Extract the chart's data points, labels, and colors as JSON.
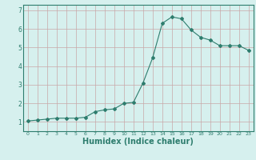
{
  "x": [
    0,
    1,
    2,
    3,
    4,
    5,
    6,
    7,
    8,
    9,
    10,
    11,
    12,
    13,
    14,
    15,
    16,
    17,
    18,
    19,
    20,
    21,
    22,
    23
  ],
  "y": [
    1.05,
    1.1,
    1.15,
    1.2,
    1.2,
    1.2,
    1.25,
    1.55,
    1.65,
    1.7,
    2.0,
    2.05,
    3.1,
    4.45,
    6.3,
    6.65,
    6.55,
    5.95,
    5.55,
    5.4,
    5.1,
    5.1,
    5.1,
    4.85
  ],
  "line_color": "#2e7d6e",
  "bg_color": "#d6f0ee",
  "grid_color_h": "#c8a8a8",
  "grid_color_v": "#c8a8a8",
  "axis_color": "#2e7d6e",
  "xlabel": "Humidex (Indice chaleur)",
  "xlabel_fontsize": 7,
  "xlim": [
    -0.5,
    23.5
  ],
  "ylim": [
    0.5,
    7.3
  ],
  "yticks": [
    1,
    2,
    3,
    4,
    5,
    6,
    7
  ],
  "xticks": [
    0,
    1,
    2,
    3,
    4,
    5,
    6,
    7,
    8,
    9,
    10,
    11,
    12,
    13,
    14,
    15,
    16,
    17,
    18,
    19,
    20,
    21,
    22,
    23
  ],
  "marker": "D",
  "markersize": 2.0,
  "linewidth": 0.8
}
